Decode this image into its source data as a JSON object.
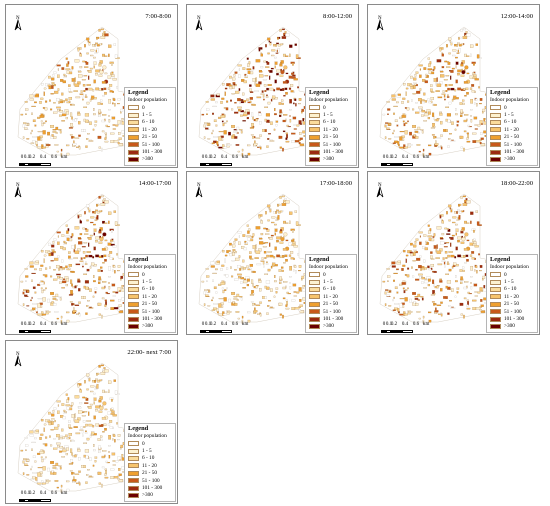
{
  "panels": [
    {
      "time": "7:00-8:00",
      "intensity": 0.75
    },
    {
      "time": "8:00-12:00",
      "intensity": 1.0
    },
    {
      "time": "12:00-14:00",
      "intensity": 0.85
    },
    {
      "time": "14:00-17:00",
      "intensity": 0.95
    },
    {
      "time": "17:00-18:00",
      "intensity": 0.7
    },
    {
      "time": "18:00-22:00",
      "intensity": 0.9
    },
    {
      "time": "22:00- next 7:00",
      "intensity": 0.65
    }
  ],
  "legend": {
    "title": "Legend",
    "subtitle": "Indoor population",
    "classes": [
      {
        "label": "0",
        "color": "#ffffff"
      },
      {
        "label": "1 - 5",
        "color": "#fdf1d0"
      },
      {
        "label": "6 - 10",
        "color": "#fbdc9c"
      },
      {
        "label": "11 - 20",
        "color": "#f7c46d"
      },
      {
        "label": "21 - 50",
        "color": "#efa02f"
      },
      {
        "label": "51 - 100",
        "color": "#c8591a"
      },
      {
        "label": "101 - 300",
        "color": "#9c2a10"
      },
      {
        "label": ">300",
        "color": "#6b0000"
      }
    ]
  },
  "scale_bar": {
    "ticks": [
      "0",
      "0.1",
      "0.2",
      "0.4",
      "0.6"
    ],
    "unit": "km"
  },
  "north_arrow": "north-arrow-icon"
}
